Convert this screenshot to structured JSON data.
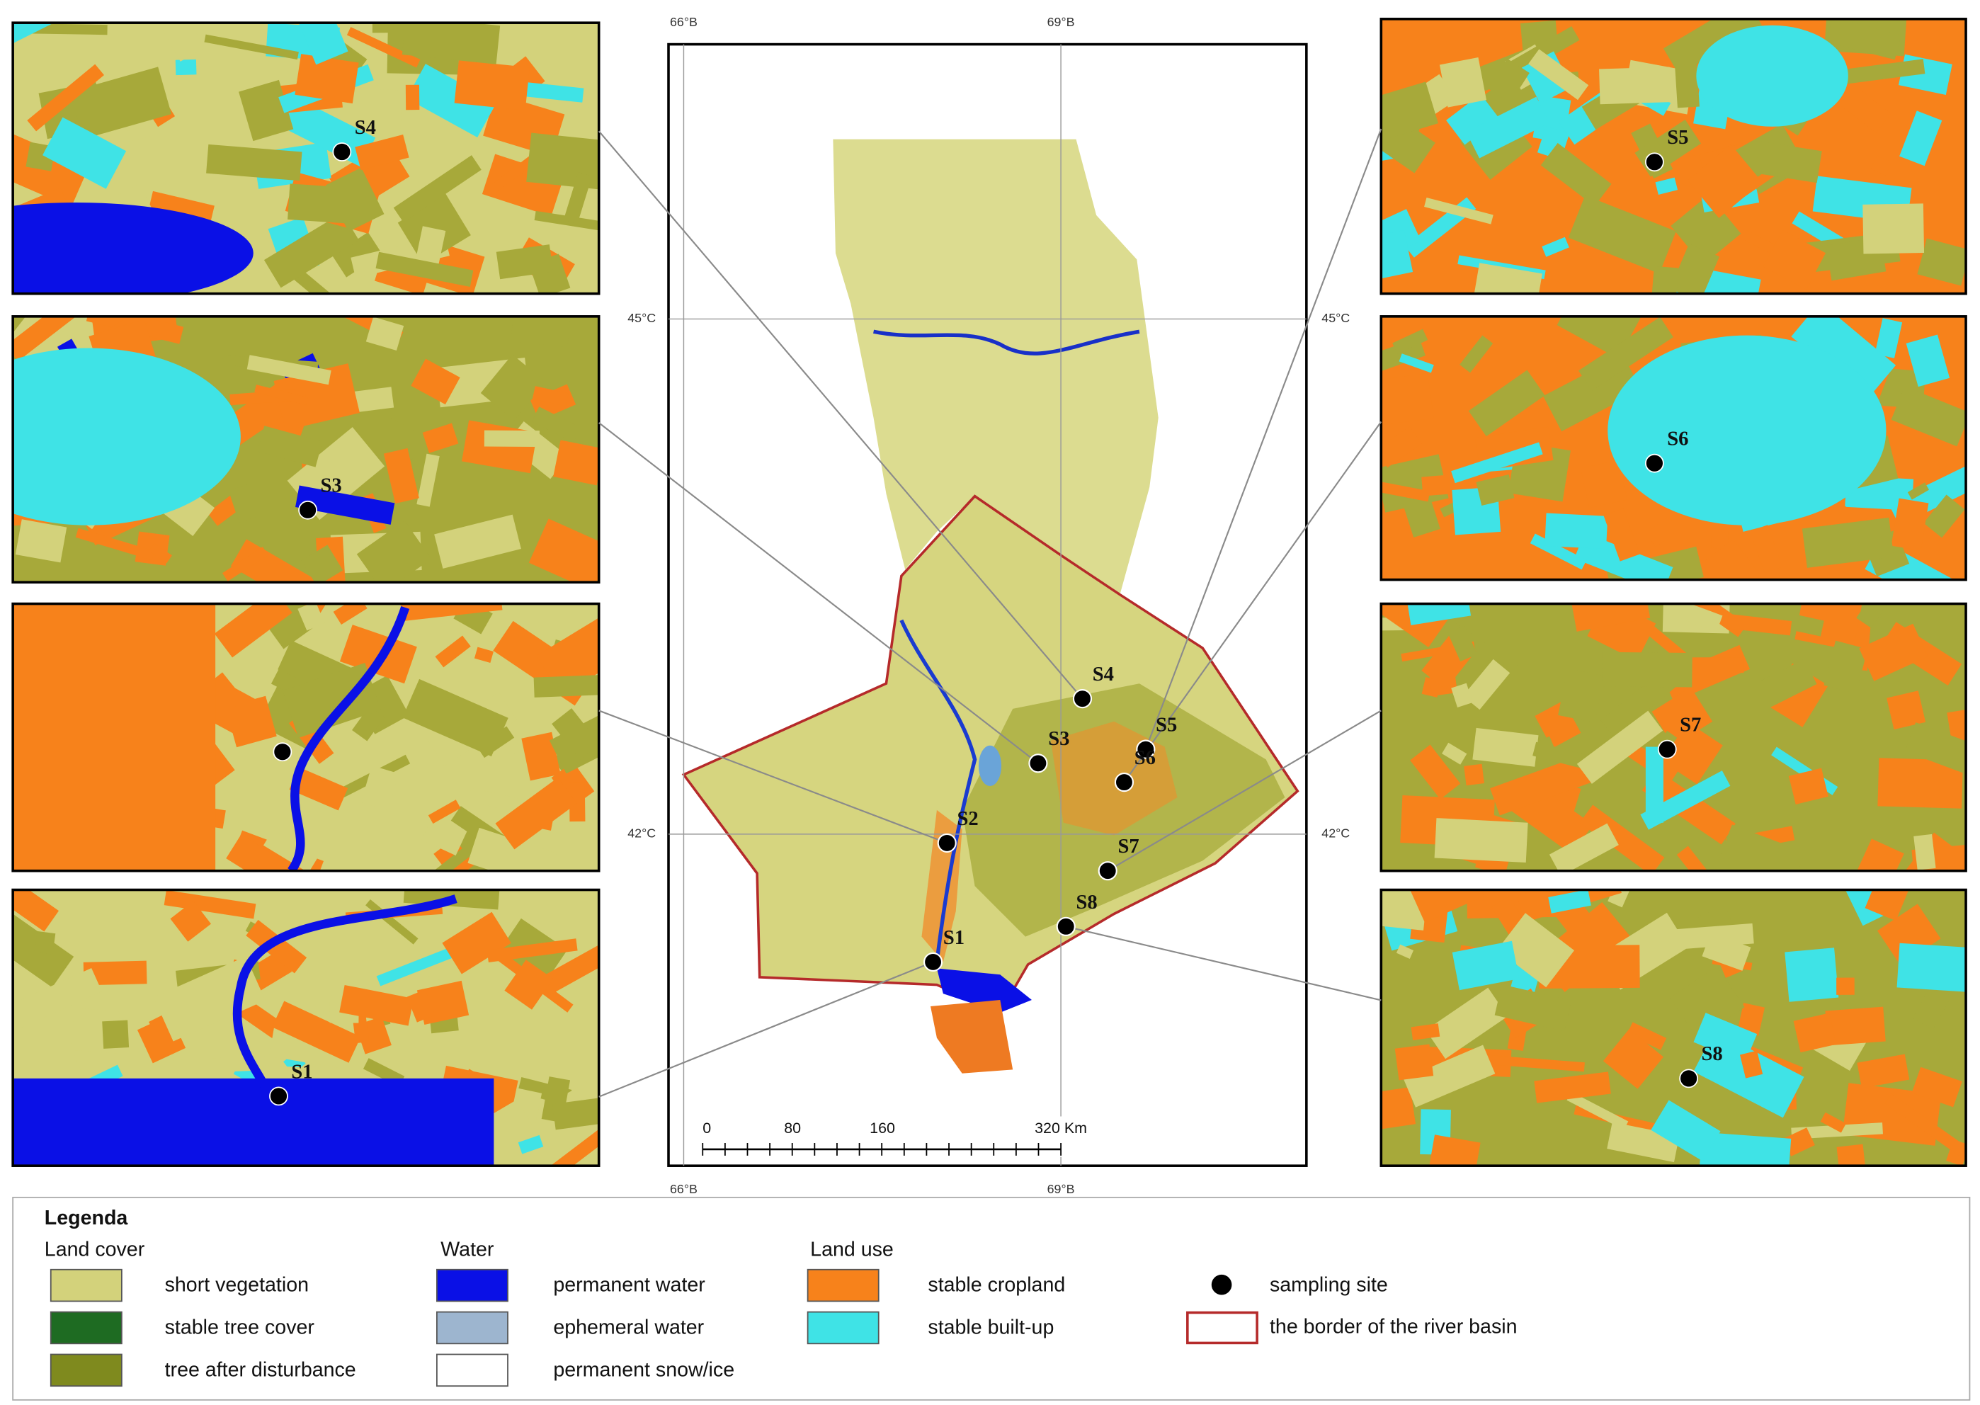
{
  "map": {
    "graticule": {
      "lon_top": [
        "66°B",
        "69°B"
      ],
      "lon_bottom": [
        "66°B",
        "69°B"
      ],
      "lat_left": [
        "45°C",
        "42°C"
      ],
      "lat_right": [
        "45°C",
        "42°C"
      ]
    },
    "sites": [
      "S1",
      "S2",
      "S3",
      "S4",
      "S5",
      "S6",
      "S7",
      "S8"
    ],
    "scale_bar": [
      "0",
      "80",
      "160",
      "320 Km"
    ]
  },
  "legend": {
    "title": "Legenda",
    "groups": [
      {
        "title": "Land cover",
        "items": [
          {
            "label": "short vegetation",
            "color": "#d3d27b"
          },
          {
            "label": "stable tree cover",
            "color": "#1e6b22"
          },
          {
            "label": "tree after disturbance",
            "color": "#7f8a1e"
          }
        ]
      },
      {
        "title": "Water",
        "items": [
          {
            "label": "permanent water",
            "color": "#0a10e6"
          },
          {
            "label": "ephemeral water",
            "color": "#9db5cf"
          },
          {
            "label": "permanent snow/ice",
            "color": "#ffffff"
          }
        ]
      },
      {
        "title": "Land use",
        "items": [
          {
            "label": "stable cropland",
            "color": "#f7821b"
          },
          {
            "label": "stable built-up",
            "color": "#3fe3e6"
          }
        ]
      }
    ],
    "symbols": [
      "sampling site",
      "the border of the river basin"
    ]
  }
}
